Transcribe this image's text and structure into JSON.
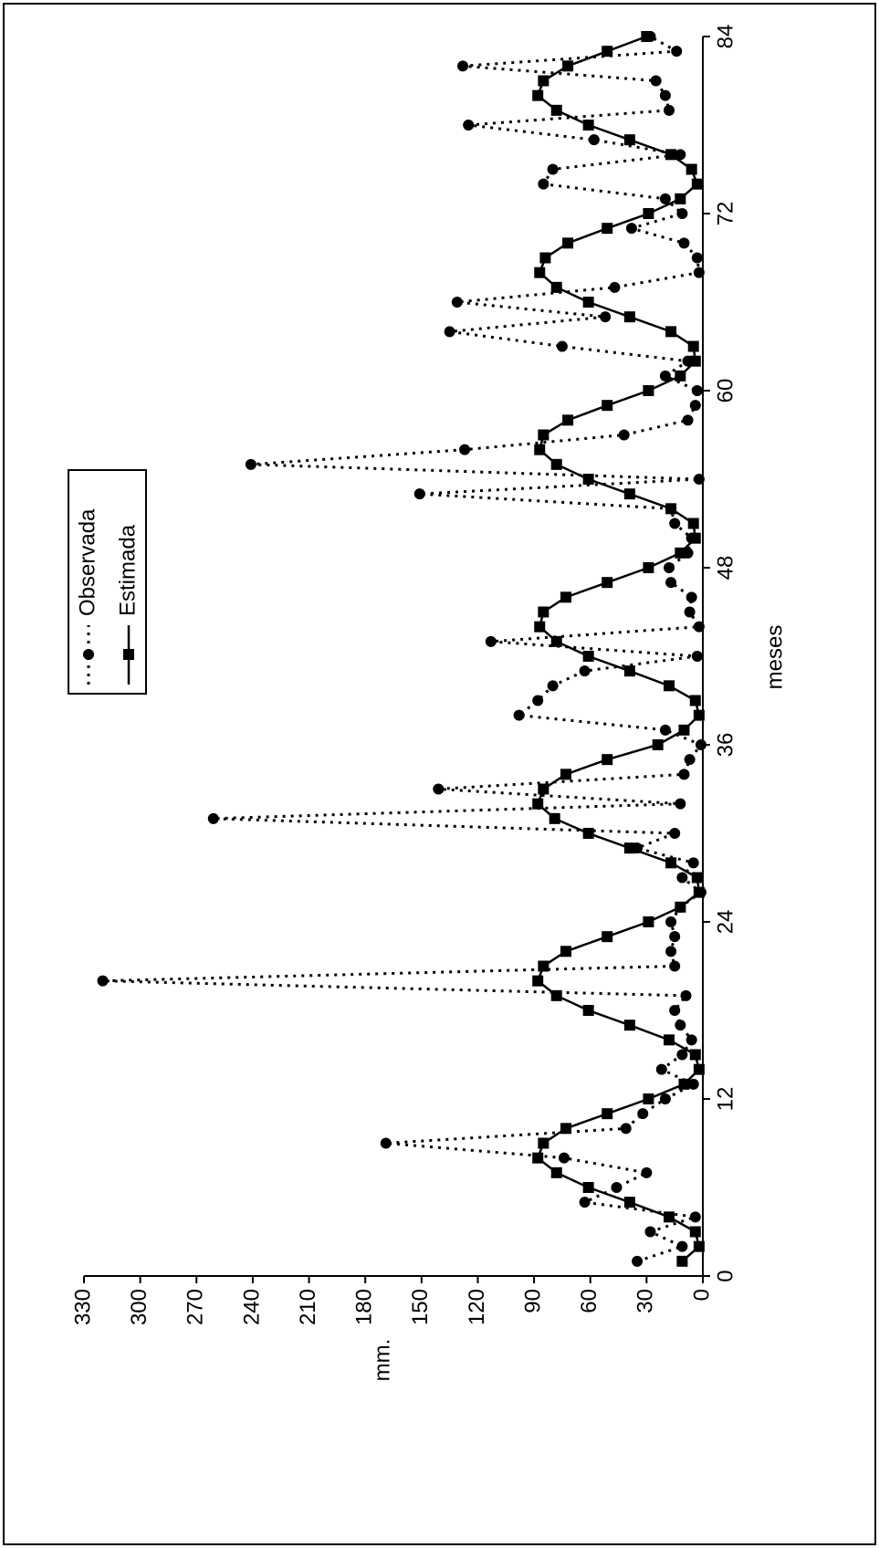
{
  "chart_data": {
    "type": "line",
    "x_label": "meses",
    "y_label": "mm.",
    "x": [
      1,
      2,
      3,
      4,
      5,
      6,
      7,
      8,
      9,
      10,
      11,
      12,
      13,
      14,
      15,
      16,
      17,
      18,
      19,
      20,
      21,
      22,
      23,
      24,
      25,
      26,
      27,
      28,
      29,
      30,
      31,
      32,
      33,
      34,
      35,
      36,
      37,
      38,
      39,
      40,
      41,
      42,
      43,
      44,
      45,
      46,
      47,
      48,
      49,
      50,
      51,
      52,
      53,
      54,
      55,
      56,
      57,
      58,
      59,
      60,
      61,
      62,
      63,
      64,
      65,
      66,
      67,
      68,
      69,
      70,
      71,
      72,
      73,
      74,
      75,
      76,
      77,
      78,
      79,
      80,
      81,
      82,
      83,
      84
    ],
    "series": [
      {
        "name": "Observada",
        "color": "#000000",
        "line": "dotted",
        "marker": "circle",
        "values": [
          35,
          11,
          28,
          4,
          63,
          46,
          30,
          74,
          169,
          41,
          32,
          20,
          5,
          22,
          11,
          6,
          12,
          15,
          9,
          320,
          15,
          17,
          15,
          17,
          12,
          1,
          11,
          5,
          35,
          15,
          261,
          12,
          141,
          10,
          7,
          1,
          20,
          98,
          88,
          80,
          63,
          3,
          113,
          2,
          7,
          6,
          17,
          18,
          8,
          6,
          15,
          17,
          151,
          2,
          241,
          127,
          42,
          8,
          4,
          3,
          20,
          8,
          75,
          135,
          52,
          131,
          47,
          2,
          3,
          10,
          38,
          11,
          20,
          85,
          80,
          12,
          58,
          125,
          18,
          20,
          25,
          128,
          14,
          28
        ]
      },
      {
        "name": "Estimada",
        "color": "#000000",
        "line": "solid",
        "marker": "square",
        "values": [
          11,
          2,
          4,
          18,
          39,
          61,
          78,
          88,
          85,
          73,
          51,
          29,
          10,
          2,
          4,
          18,
          39,
          61,
          78,
          88,
          85,
          73,
          51,
          29,
          12,
          2,
          3,
          17,
          39,
          61,
          79,
          88,
          85,
          73,
          51,
          24,
          10,
          2,
          4,
          18,
          39,
          61,
          78,
          87,
          85,
          73,
          51,
          29,
          12,
          4,
          5,
          17,
          39,
          61,
          78,
          87,
          85,
          72,
          51,
          29,
          12,
          4,
          5,
          17,
          39,
          61,
          78,
          87,
          84,
          72,
          51,
          29,
          12,
          3,
          6,
          17,
          39,
          61,
          78,
          88,
          85,
          72,
          51,
          30
        ]
      }
    ],
    "xlim": [
      0,
      84
    ],
    "xticks": [
      0,
      12,
      24,
      36,
      48,
      60,
      72,
      84
    ],
    "ylim": [
      0,
      330
    ],
    "yticks": [
      0,
      30,
      60,
      90,
      120,
      150,
      180,
      210,
      240,
      270,
      300,
      330
    ],
    "legend": "top-left"
  }
}
